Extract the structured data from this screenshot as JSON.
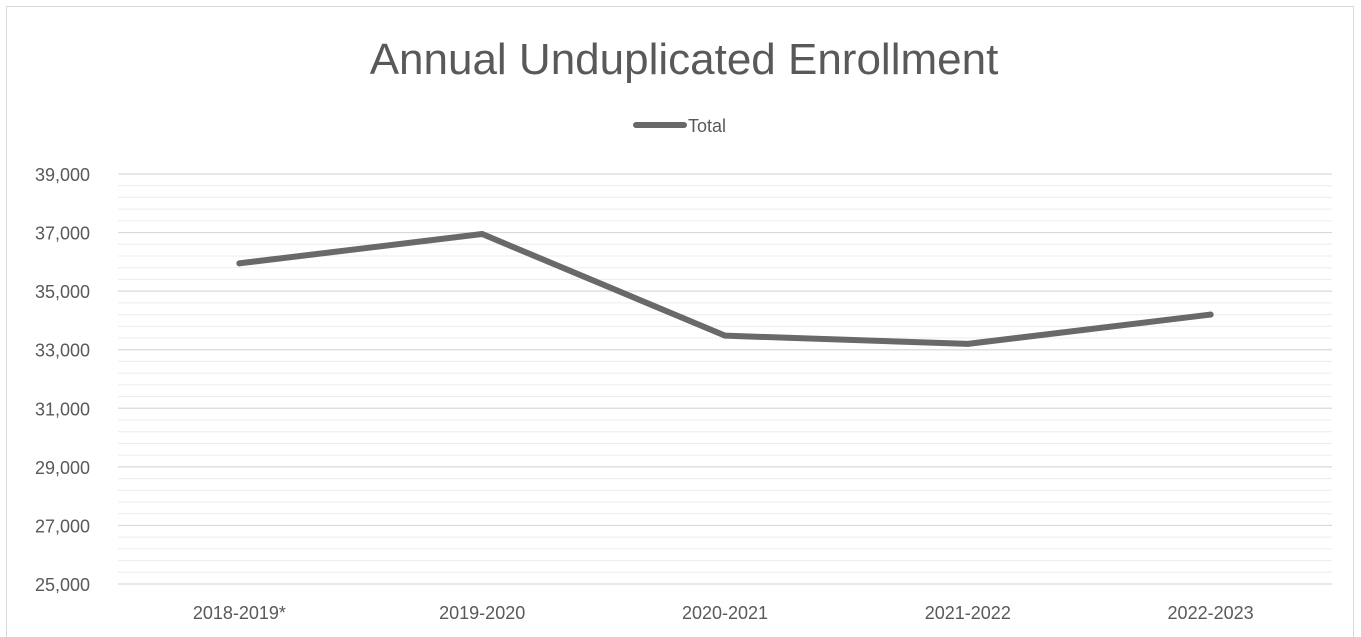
{
  "chart_data": {
    "type": "line",
    "title": "Annual Unduplicated Enrollment",
    "xlabel": "",
    "ylabel": "",
    "categories": [
      "2018-2019*",
      "2019-2020",
      "2020-2021",
      "2021-2022",
      "2022-2023"
    ],
    "series": [
      {
        "name": "Total",
        "values": [
          35950,
          36950,
          33480,
          33200,
          34200
        ],
        "color": "#696969"
      }
    ],
    "ylim": [
      25000,
      39000
    ],
    "y_ticks": [
      "25,000",
      "27,000",
      "29,000",
      "31,000",
      "33,000",
      "35,000",
      "37,000",
      "39,000"
    ],
    "y_tick_values": [
      25000,
      27000,
      29000,
      31000,
      33000,
      35000,
      37000,
      39000
    ],
    "minor_grid_step": 400,
    "grid": true,
    "legend_position": "top",
    "colors": {
      "major_grid": "#d9d9d9",
      "minor_grid": "#ececec",
      "text": "#595959"
    }
  }
}
